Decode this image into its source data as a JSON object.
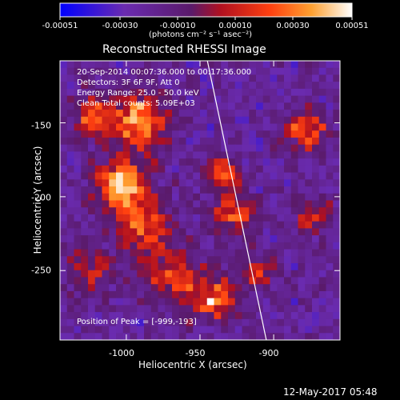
{
  "colorbar": {
    "ticks": [
      "-0.00051",
      "-0.00030",
      "-0.00010",
      "0.00010",
      "0.00030",
      "0.00051"
    ],
    "units_label": "(photons cm⁻² s⁻¹ asec⁻²)",
    "range": [
      -0.00051,
      0.00051
    ],
    "colors": [
      "#0000ff",
      "#6a2bb0",
      "#5a1a6a",
      "#b01020",
      "#ff4010",
      "#ffa030",
      "#ffffff"
    ]
  },
  "chart_data": {
    "type": "heatmap",
    "title": "Reconstructed RHESSI Image",
    "xlabel": "Heliocentric X (arcsec)",
    "ylabel": "Heliocentric Y (arcsec)",
    "xlim": [
      -1045,
      -855
    ],
    "ylim": [
      -297,
      -108
    ],
    "xticks": [
      "-1000",
      "-950",
      "-900"
    ],
    "xtick_values": [
      -1000,
      -950,
      -900
    ],
    "yticks": [
      "-150",
      "-200",
      "-250"
    ],
    "ytick_values": [
      -150,
      -200,
      -250
    ],
    "limb_line": {
      "x": [
        -945,
        -905
      ],
      "y": [
        -108,
        -297
      ]
    },
    "peak": {
      "x": -999,
      "y": -193
    },
    "annotations": [
      "20-Sep-2014 00:07:36.000 to 00:17:36.000",
      "Detectors: 3F 6F 9F, Att 0",
      "Energy Range: 25.0 - 50.0 keV",
      "Clean    Total counts: 5.09E+03",
      "Position of Peak = [-999,-193]"
    ]
  },
  "footer": {
    "timestamp": "12-May-2017 05:48"
  }
}
